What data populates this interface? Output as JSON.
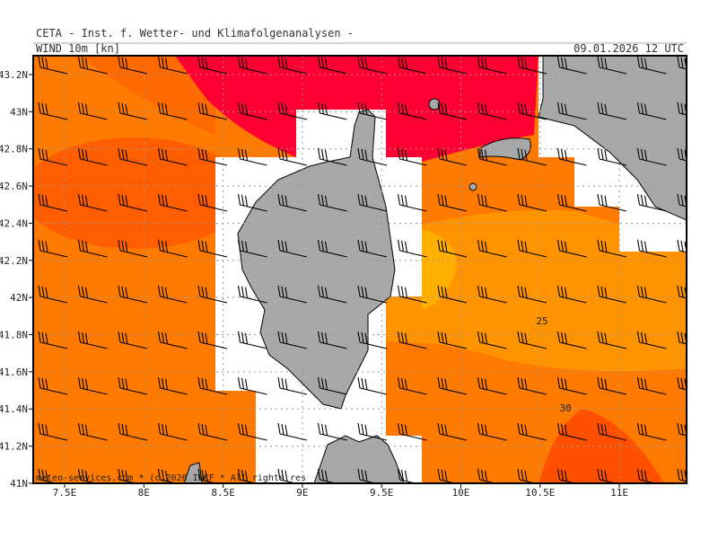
{
  "header": {
    "title": "CETA - Inst. f. Wetter- und Klimafolgenanalysen -",
    "product": "WIND 10m [kn]",
    "datetime": "09.01.2026 12 UTC"
  },
  "axes": {
    "lat_labels": [
      "43.2N",
      "43N",
      "42.8N",
      "42.6N",
      "42.4N",
      "42.2N",
      "42N",
      "41.8N",
      "41.6N",
      "41.4N",
      "41.2N",
      "41N"
    ],
    "lon_labels": [
      "7.5E",
      "8E",
      "8.5E",
      "9E",
      "9.5E",
      "10E",
      "10.5E",
      "11E"
    ]
  },
  "contour_labels": [
    "25",
    "30"
  ],
  "footer": {
    "copyright": "meteo-services.com * (c)2026 IWKF * All rights res"
  }
}
